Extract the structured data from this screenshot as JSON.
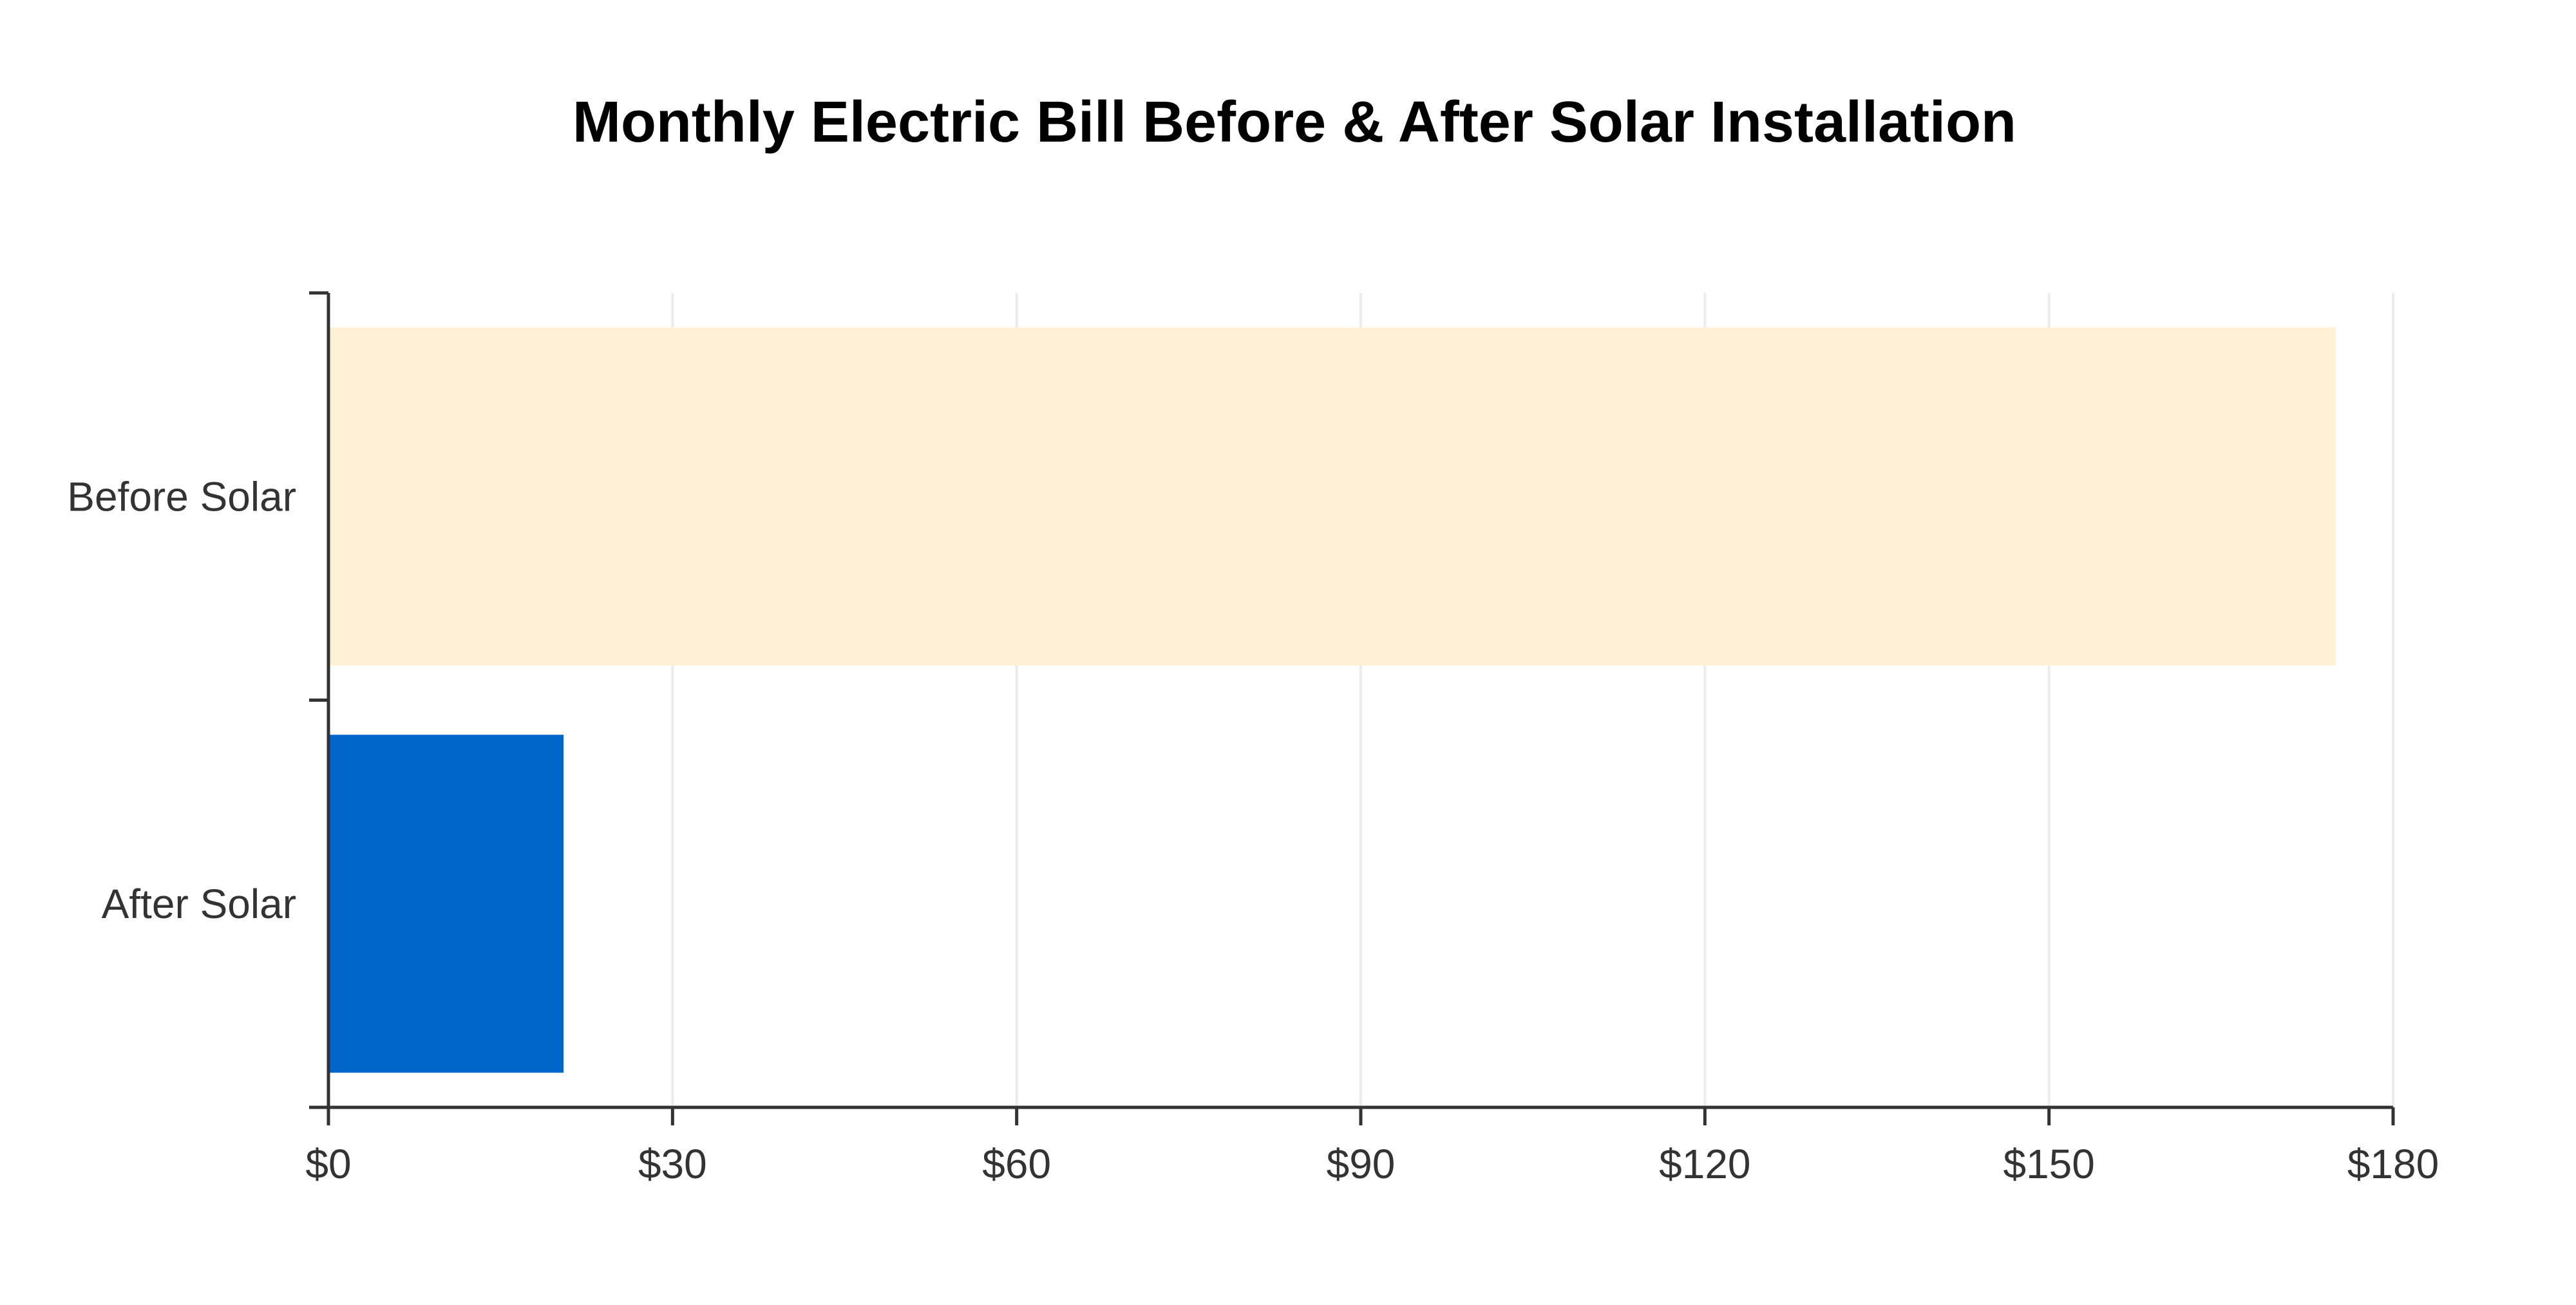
{
  "chart_data": {
    "type": "bar",
    "orientation": "horizontal",
    "title": "Monthly Electric Bill Before & After Solar Installation",
    "xlabel": "",
    "ylabel": "",
    "categories": [
      "Before Solar",
      "After Solar"
    ],
    "values": [
      175,
      20.5
    ],
    "bar_colors": [
      "#fff0d6",
      "#0066cc"
    ],
    "xlim": [
      0,
      180
    ],
    "x_ticks": [
      0,
      30,
      60,
      90,
      120,
      150,
      180
    ],
    "x_tick_labels": [
      "$0",
      "$30",
      "$60",
      "$90",
      "$120",
      "$150",
      "$180"
    ],
    "grid": true,
    "legend": "none"
  }
}
